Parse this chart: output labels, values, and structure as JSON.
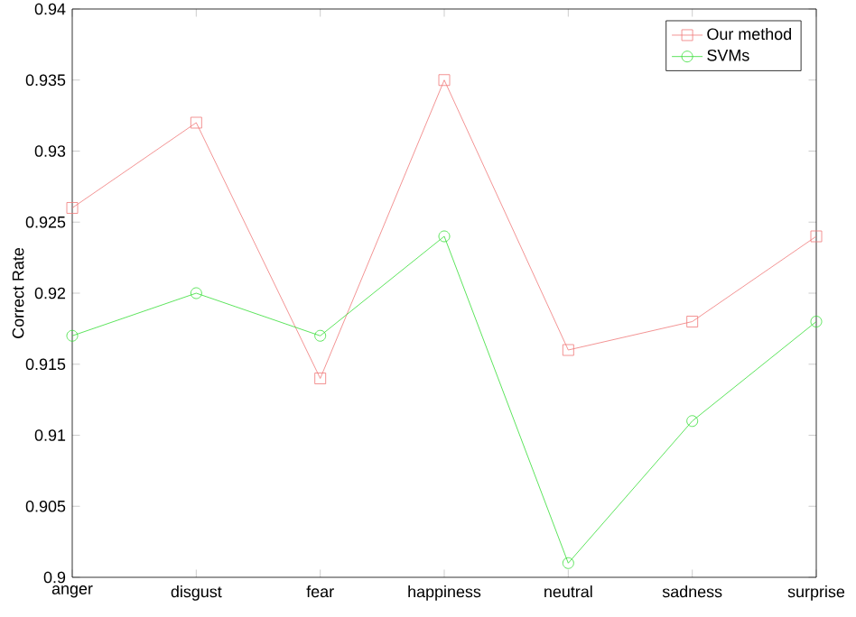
{
  "chart_data": {
    "type": "line",
    "ylabel": "Correct Rate",
    "categories": [
      "anger",
      "disgust",
      "fear",
      "happiness",
      "neutral",
      "sadness",
      "surprise"
    ],
    "series": [
      {
        "name": "Our method",
        "color": "#f07878",
        "marker": "square",
        "values": [
          0.926,
          0.932,
          0.914,
          0.935,
          0.916,
          0.918,
          0.924
        ]
      },
      {
        "name": "SVMs",
        "color": "#33dd33",
        "marker": "circle",
        "values": [
          0.917,
          0.92,
          0.917,
          0.924,
          0.901,
          0.911,
          0.918
        ]
      }
    ],
    "ylim": [
      0.9,
      0.94
    ],
    "yticks": [
      0.9,
      0.905,
      0.91,
      0.915,
      0.92,
      0.925,
      0.93,
      0.935,
      0.94
    ],
    "legend": "top right",
    "grid": false
  }
}
